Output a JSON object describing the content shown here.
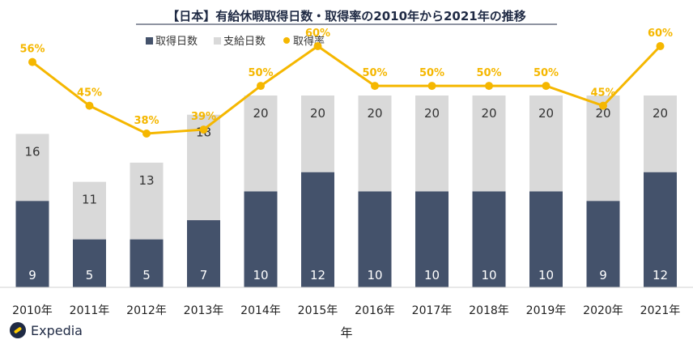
{
  "chart_data": {
    "type": "bar",
    "title": "【日本】有給休暇取得日数・取得率の2010年から2021年の推移",
    "xlabel": "年",
    "categories": [
      "2010年",
      "2011年",
      "2012年",
      "2013年",
      "2014年",
      "2015年",
      "2016年",
      "2017年",
      "2018年",
      "2019年",
      "2020年",
      "2021年"
    ],
    "series": [
      {
        "name": "取得日数",
        "kind": "stacked-bar",
        "color": "#44526b",
        "values": [
          9,
          5,
          5,
          7,
          10,
          12,
          10,
          10,
          10,
          10,
          9,
          12
        ]
      },
      {
        "name": "支給日数",
        "kind": "stacked-bar",
        "color": "#d9d9d9",
        "values": [
          16,
          11,
          13,
          18,
          20,
          20,
          20,
          20,
          20,
          20,
          20,
          20
        ]
      },
      {
        "name": "取得率",
        "kind": "line",
        "color": "#f5b700",
        "values": [
          56,
          45,
          38,
          39,
          50,
          60,
          50,
          50,
          50,
          50,
          45,
          60
        ],
        "labels": [
          "56%",
          "45%",
          "38%",
          "39%",
          "50%",
          "60%",
          "50%",
          "50%",
          "50%",
          "50%",
          "45%",
          "60%"
        ]
      }
    ],
    "legend": "top-left",
    "grid": false,
    "ylim_days": [
      0,
      20
    ],
    "ylim_rate": [
      0,
      100
    ]
  },
  "brand": {
    "name": "Expedia"
  }
}
